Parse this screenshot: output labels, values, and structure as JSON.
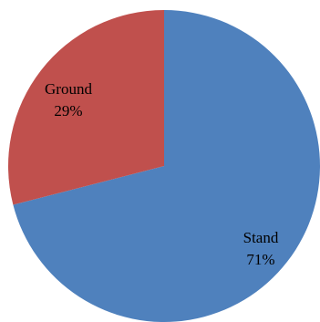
{
  "chart_data": {
    "type": "pie",
    "title": "",
    "categories": [
      "Stand",
      "Ground"
    ],
    "values": [
      71,
      29
    ],
    "labels": [
      {
        "name": "Stand",
        "percent": "71%"
      },
      {
        "name": "Ground",
        "percent": "29%"
      }
    ],
    "colors": [
      "#4F81BD",
      "#C0504D"
    ],
    "legend": "none"
  }
}
